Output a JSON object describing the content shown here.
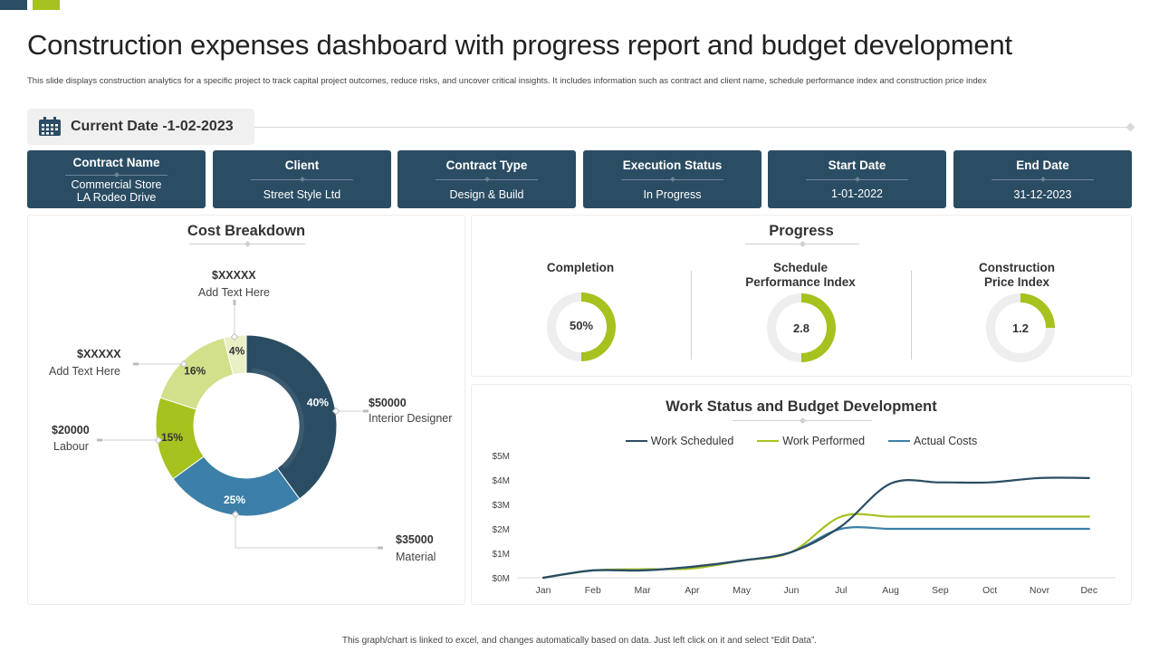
{
  "header": {
    "title": "Construction expenses dashboard with progress report and budget development",
    "subtitle": "This slide displays construction analytics for a specific project to track capital project outcomes, reduce risks, and uncover critical insights. It includes information such as contract and client name,  schedule performance index and construction price index"
  },
  "current_date": {
    "icon": "calendar-icon",
    "text": "Current Date -1-02-2023"
  },
  "info_cards": [
    {
      "label": "Contract Name",
      "value_line1": "Commercial Store",
      "value_line2": "LA Rodeo Drive"
    },
    {
      "label": "Client",
      "value_line1": "Street Style Ltd"
    },
    {
      "label": "Contract Type",
      "value_line1": "Design & Build"
    },
    {
      "label": "Execution Status",
      "value_line1": "In Progress"
    },
    {
      "label": "Start Date",
      "value_line1": "1-01-2022"
    },
    {
      "label": "End Date",
      "value_line1": "31-12-2023"
    }
  ],
  "colors": {
    "navy": "#2b4d63",
    "blue": "#3c7fa8",
    "green": "#a6c21e",
    "light_green": "#d3e08a",
    "pale_green": "#eaefc4",
    "ring_bg": "#eeeeee"
  },
  "progress": {
    "title": "Progress",
    "metrics": [
      {
        "label_line1": "Completion",
        "label_line2": "",
        "value": "50%",
        "fill": 0.5
      },
      {
        "label_line1": "Schedule",
        "label_line2": "Performance Index",
        "value": "2.8",
        "fill": 0.5
      },
      {
        "label_line1": "Construction",
        "label_line2": "Price Index",
        "value": "1.2",
        "fill": 0.25
      }
    ]
  },
  "chart_data": [
    {
      "type": "pie",
      "title": "Cost Breakdown",
      "slices": [
        {
          "label": "40%",
          "value": 40,
          "color": "#2b4d63",
          "amount": "$50000",
          "text": "Interior Designer"
        },
        {
          "label": "25%",
          "value": 25,
          "color": "#3c7fa8",
          "amount": "$35000",
          "text": "Material"
        },
        {
          "label": "15%",
          "value": 15,
          "color": "#a6c21e",
          "amount": "$20000",
          "text": "Labour"
        },
        {
          "label": "16%",
          "value": 16,
          "color": "#d3e08a",
          "amount": "$XXXXX",
          "text": "Add Text Here"
        },
        {
          "label": "4%",
          "value": 4,
          "color": "#eaefc4",
          "amount": "$XXXXX",
          "text": "Add Text Here"
        }
      ]
    },
    {
      "type": "line",
      "title": "Work Status and Budget Development",
      "categories": [
        "Jan",
        "Feb",
        "Mar",
        "Apr",
        "May",
        "Jun",
        "Jul",
        "Aug",
        "Sep",
        "Oct",
        "Novr",
        "Dec"
      ],
      "ylim": [
        0,
        5
      ],
      "yticks": [
        "$0M",
        "$1M",
        "$2M",
        "$3M",
        "$4M",
        "$5M"
      ],
      "grid": false,
      "legend": "top",
      "series": [
        {
          "name": "Work Scheduled",
          "color": "#2b4d63",
          "values": [
            0,
            0.3,
            0.3,
            0.45,
            0.7,
            1.05,
            2.1,
            3.85,
            3.9,
            3.9,
            4.08,
            4.08
          ]
        },
        {
          "name": "Work Performed",
          "color": "#a6c21e",
          "values": [
            0,
            0.3,
            0.35,
            0.38,
            0.7,
            1.05,
            2.5,
            2.5,
            2.5,
            2.5,
            2.5,
            2.5
          ]
        },
        {
          "name": "Actual Costs",
          "color": "#3c7fa8",
          "values": [
            0,
            0.3,
            0.3,
            0.45,
            0.7,
            1.05,
            2.0,
            2.0,
            2.0,
            2.0,
            2.0,
            2.0
          ]
        }
      ]
    }
  ],
  "footer": {
    "note": "This graph/chart is linked to excel, and changes automatically based on data. Just left click on it and select “Edit Data”."
  }
}
